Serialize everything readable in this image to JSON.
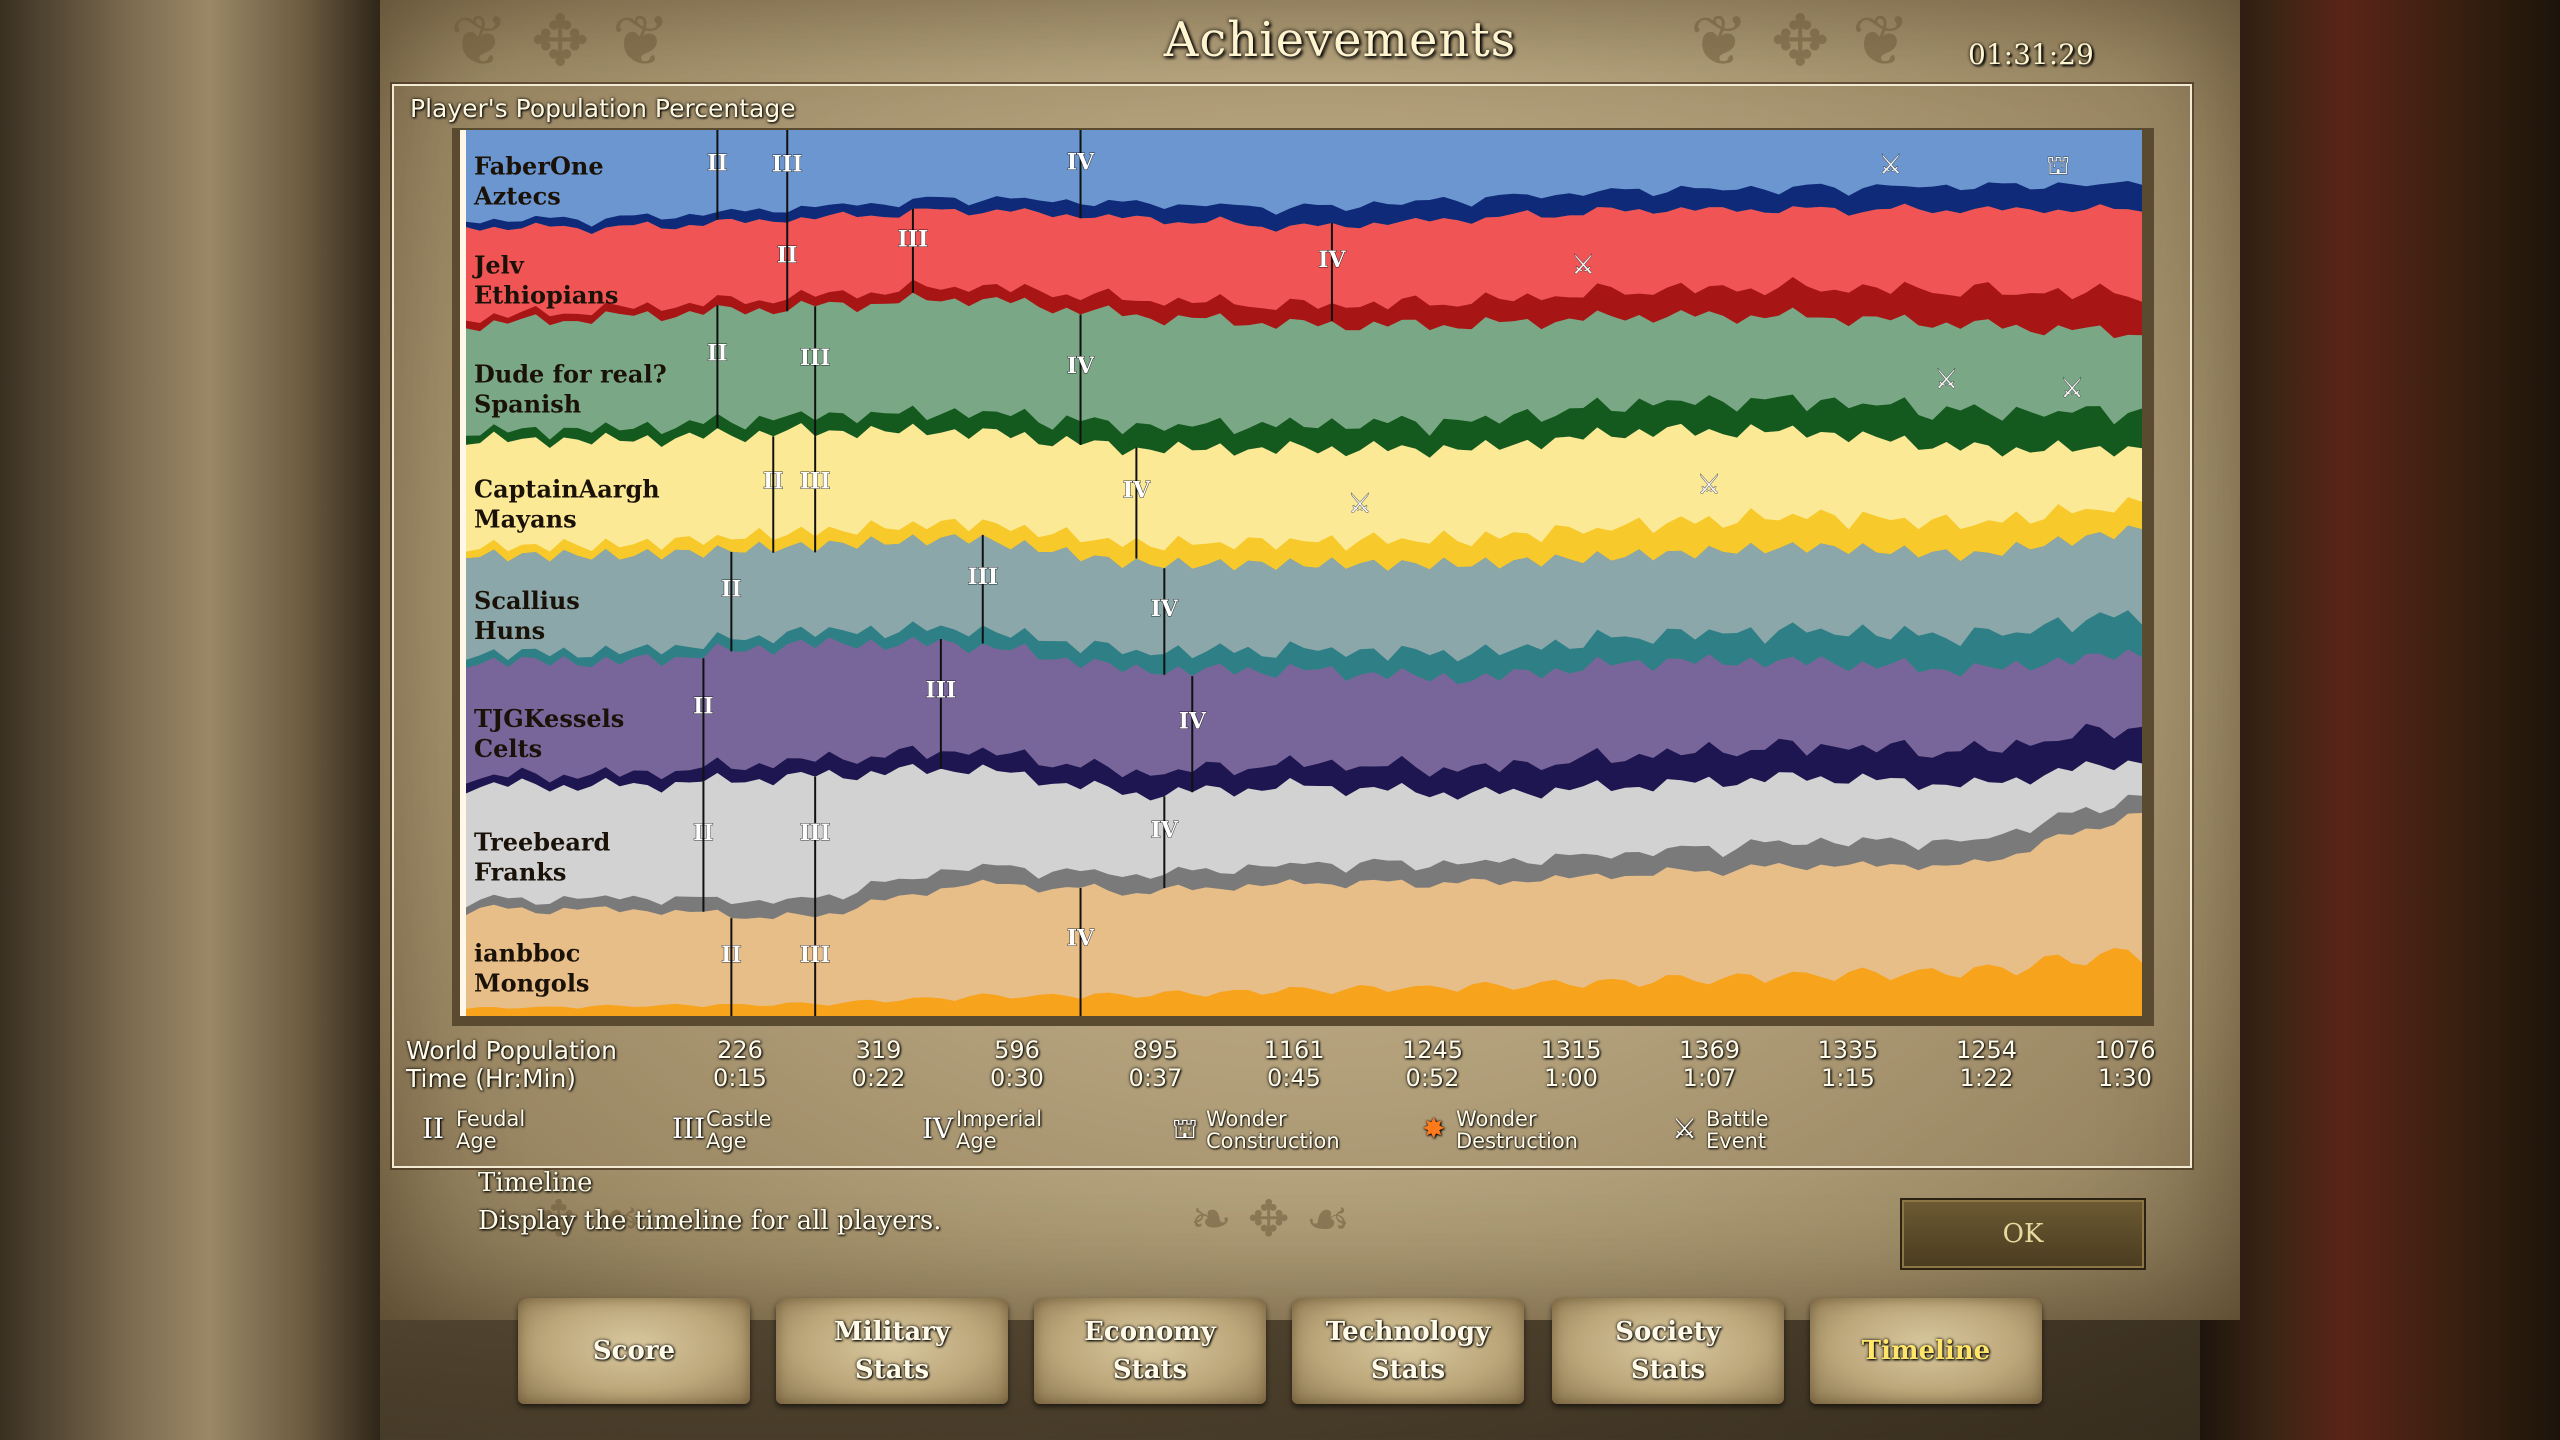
{
  "header": {
    "title": "Achievements",
    "clock": "01:31:29"
  },
  "panel": {
    "title": "Player's Population Percentage"
  },
  "chart_data": {
    "type": "area",
    "title": "Player's Population Percentage",
    "stacked": true,
    "normalized_to_100_percent": true,
    "x_labels": [
      "0:15",
      "0:22",
      "0:30",
      "0:37",
      "0:45",
      "0:52",
      "1:00",
      "1:07",
      "1:15",
      "1:22",
      "1:30"
    ],
    "series": [
      {
        "name": "FaberOne",
        "civ": "Aztecs",
        "color": "#6b96cf",
        "accent": "#0e2a78",
        "values": [
          11,
          11,
          10,
          9,
          10,
          11,
          10,
          9,
          9,
          9,
          9
        ],
        "ages": [
          {
            "age": "II",
            "t": 0.15
          },
          {
            "age": "III",
            "t": 0.19
          },
          {
            "age": "IV",
            "t": 0.37
          }
        ],
        "events": [
          {
            "type": "battle",
            "t": 0.85
          },
          {
            "type": "wonder",
            "t": 0.95
          }
        ]
      },
      {
        "name": "Jelv",
        "civ": "Ethiopians",
        "color": "#f05454",
        "accent": "#a81515",
        "values": [
          11,
          10,
          10,
          10,
          11,
          11,
          12,
          12,
          12,
          13,
          14
        ],
        "ages": [
          {
            "age": "II",
            "t": 0.19
          },
          {
            "age": "III",
            "t": 0.27
          },
          {
            "age": "IV",
            "t": 0.52
          }
        ],
        "events": [
          {
            "type": "battle",
            "t": 0.67
          }
        ]
      },
      {
        "name": "Dude for real?",
        "civ": "Spanish",
        "color": "#7aa886",
        "accent": "#145a1e",
        "values": [
          13,
          14,
          14,
          15,
          15,
          14,
          14,
          13,
          13,
          14,
          13
        ],
        "ages": [
          {
            "age": "II",
            "t": 0.15
          },
          {
            "age": "III",
            "t": 0.21
          },
          {
            "age": "IV",
            "t": 0.37
          }
        ],
        "events": [
          {
            "type": "battle",
            "t": 0.88
          },
          {
            "type": "battle",
            "t": 0.96
          }
        ]
      },
      {
        "name": "CaptainAargh",
        "civ": "Mayans",
        "color": "#fbe996",
        "accent": "#f7c92a",
        "values": [
          13,
          13,
          13,
          12,
          13,
          13,
          13,
          14,
          13,
          12,
          9
        ],
        "ages": [
          {
            "age": "II",
            "t": 0.18
          },
          {
            "age": "III",
            "t": 0.21
          },
          {
            "age": "IV",
            "t": 0.4
          }
        ],
        "events": [
          {
            "type": "battle",
            "t": 0.53
          },
          {
            "type": "battle",
            "t": 0.74
          }
        ]
      },
      {
        "name": "Scallius",
        "civ": "Huns",
        "color": "#8ba7a9",
        "accent": "#2e7f86",
        "values": [
          12,
          12,
          11,
          12,
          12,
          12,
          13,
          12,
          13,
          13,
          14
        ],
        "ages": [
          {
            "age": "II",
            "t": 0.16
          },
          {
            "age": "III",
            "t": 0.31
          },
          {
            "age": "IV",
            "t": 0.42
          }
        ],
        "events": []
      },
      {
        "name": "TJGKessels",
        "civ": "Celts",
        "color": "#78669b",
        "accent": "#1e1650",
        "values": [
          14,
          14,
          15,
          14,
          14,
          13,
          13,
          14,
          13,
          13,
          12
        ],
        "ages": [
          {
            "age": "II",
            "t": 0.14
          },
          {
            "age": "III",
            "t": 0.28
          },
          {
            "age": "IV",
            "t": 0.43
          }
        ],
        "events": []
      },
      {
        "name": "Treebeard",
        "civ": "Franks",
        "color": "#d2d2d2",
        "accent": "#7a7a7a",
        "values": [
          14,
          14,
          16,
          13,
          11,
          11,
          10,
          10,
          10,
          9,
          6
        ],
        "ages": [
          {
            "age": "II",
            "t": 0.14
          },
          {
            "age": "III",
            "t": 0.21
          },
          {
            "age": "IV",
            "t": 0.42
          }
        ],
        "events": []
      },
      {
        "name": "ianbboc",
        "civ": "Mongols",
        "color": "#e8be88",
        "accent": "#f7a31c",
        "values": [
          12,
          12,
          11,
          15,
          14,
          15,
          15,
          16,
          17,
          17,
          23
        ],
        "ages": [
          {
            "age": "II",
            "t": 0.16
          },
          {
            "age": "III",
            "t": 0.21
          },
          {
            "age": "IV",
            "t": 0.37
          }
        ],
        "events": []
      }
    ]
  },
  "stats": {
    "world_population_label": "World Population",
    "time_label": "Time (Hr:Min)",
    "world_population": [
      "226",
      "319",
      "596",
      "895",
      "1161",
      "1245",
      "1315",
      "1369",
      "1335",
      "1254",
      "1076"
    ],
    "times": [
      "0:15",
      "0:22",
      "0:30",
      "0:37",
      "0:45",
      "0:52",
      "1:00",
      "1:07",
      "1:15",
      "1:22",
      "1:30"
    ]
  },
  "legend": [
    {
      "icon": "feudal-age-icon",
      "glyph": "II",
      "line1": "Feudal",
      "line2": "Age"
    },
    {
      "icon": "castle-age-icon",
      "glyph": "III",
      "line1": "Castle",
      "line2": "Age"
    },
    {
      "icon": "imperial-age-icon",
      "glyph": "IV",
      "line1": "Imperial",
      "line2": "Age"
    },
    {
      "icon": "wonder-construction-icon",
      "glyph": "⛫",
      "line1": "Wonder",
      "line2": "Construction"
    },
    {
      "icon": "wonder-destruction-icon",
      "glyph": "✸",
      "line1": "Wonder",
      "line2": "Destruction"
    },
    {
      "icon": "battle-event-icon",
      "glyph": "⚔",
      "line1": "Battle",
      "line2": "Event"
    }
  ],
  "description": {
    "title": "Timeline",
    "text": "Display the timeline for all players."
  },
  "ok_label": "OK",
  "tabs": [
    {
      "label": "Score",
      "active": false
    },
    {
      "label": "Military\nStats",
      "active": false
    },
    {
      "label": "Economy\nStats",
      "active": false
    },
    {
      "label": "Technology\nStats",
      "active": false
    },
    {
      "label": "Society\nStats",
      "active": false
    },
    {
      "label": "Timeline",
      "active": true
    }
  ]
}
